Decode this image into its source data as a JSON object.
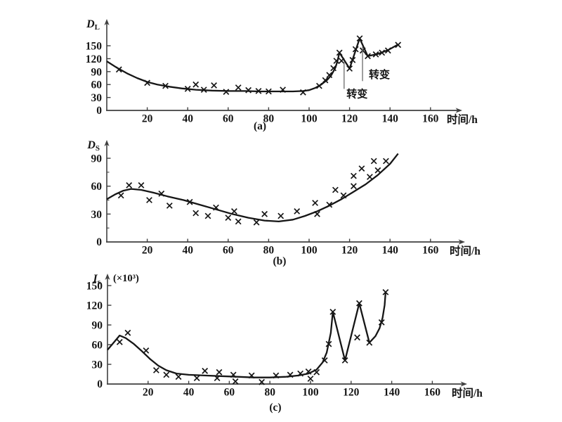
{
  "figure": {
    "ink_color": "#161616",
    "axis_color": "#3f3f3f",
    "annotation_line_color": "#6a6a6a",
    "marker_glyph": "x-cross",
    "x_axis_label": "时间/h"
  },
  "chart_data": [
    {
      "id": "a",
      "type": "scatter",
      "sublabel": "(a)",
      "ylabel_base": "D",
      "ylabel_sub": "L",
      "ylabel_unit": "",
      "xlabel": "时间/h",
      "xlim": [
        0,
        176
      ],
      "ylim": [
        0,
        212
      ],
      "x_ticks": [
        20,
        40,
        60,
        80,
        100,
        120,
        140,
        160
      ],
      "y_ticks": [
        30,
        60,
        90,
        120,
        150
      ],
      "y_minor_ticks": [],
      "origin_tick_label": "0",
      "grid": false,
      "curve": [
        [
          0,
          114
        ],
        [
          5,
          99
        ],
        [
          10,
          86
        ],
        [
          15,
          75
        ],
        [
          20,
          66
        ],
        [
          25,
          60
        ],
        [
          31,
          55
        ],
        [
          37,
          51
        ],
        [
          44,
          48
        ],
        [
          52,
          46
        ],
        [
          60,
          45
        ],
        [
          68,
          45
        ],
        [
          76,
          44
        ],
        [
          84,
          44
        ],
        [
          92,
          44
        ],
        [
          97,
          45
        ],
        [
          100,
          47
        ],
        [
          103,
          52
        ],
        [
          106,
          60
        ],
        [
          109,
          71
        ],
        [
          111,
          82
        ],
        [
          113,
          99
        ],
        [
          114,
          114
        ],
        [
          115,
          134
        ],
        [
          120,
          97
        ],
        [
          125,
          167
        ],
        [
          129,
          126
        ],
        [
          134,
          131
        ],
        [
          139,
          140
        ],
        [
          144,
          153
        ]
      ],
      "points": [
        [
          6,
          95
        ],
        [
          20,
          64
        ],
        [
          29,
          57
        ],
        [
          40,
          50
        ],
        [
          44,
          60
        ],
        [
          48,
          48
        ],
        [
          53,
          58
        ],
        [
          59,
          43
        ],
        [
          65,
          53
        ],
        [
          70,
          47
        ],
        [
          75,
          45
        ],
        [
          80,
          44
        ],
        [
          87,
          48
        ],
        [
          97,
          42
        ],
        [
          105,
          57
        ],
        [
          108,
          70
        ],
        [
          110,
          82
        ],
        [
          112,
          98
        ],
        [
          113.5,
          115
        ],
        [
          115,
          134
        ],
        [
          116,
          115
        ],
        [
          120,
          97
        ],
        [
          121.5,
          117
        ],
        [
          123,
          142
        ],
        [
          125,
          167
        ],
        [
          126.5,
          139
        ],
        [
          129,
          126
        ],
        [
          133,
          130
        ],
        [
          136,
          134
        ],
        [
          139,
          139
        ],
        [
          144,
          152
        ]
      ],
      "annotations": [
        {
          "label": "转变",
          "line_x": 117.3,
          "line_y_from": 112,
          "line_y_to": 50,
          "label_x": 118.5,
          "label_y": 30
        },
        {
          "label": "转变",
          "line_x": 126.4,
          "line_y_from": 148,
          "line_y_to": 68,
          "label_x": 129.5,
          "label_y": 75
        }
      ]
    },
    {
      "id": "b",
      "type": "scatter",
      "sublabel": "(b)",
      "ylabel_base": "D",
      "ylabel_sub": "S",
      "ylabel_unit": "",
      "xlabel": "时间/h",
      "xlim": [
        0,
        176
      ],
      "ylim": [
        0,
        110
      ],
      "x_ticks": [
        20,
        40,
        60,
        80,
        100,
        120,
        140,
        160
      ],
      "y_ticks": [
        30,
        60,
        90
      ],
      "y_minor_ticks": [
        15,
        45,
        75
      ],
      "origin_tick_label": "0",
      "grid": false,
      "curve": [
        [
          0,
          46
        ],
        [
          4,
          51
        ],
        [
          8,
          55
        ],
        [
          12,
          57
        ],
        [
          17,
          56
        ],
        [
          23,
          53
        ],
        [
          30,
          49
        ],
        [
          38,
          45
        ],
        [
          46,
          40
        ],
        [
          54,
          35
        ],
        [
          62,
          30
        ],
        [
          70,
          26
        ],
        [
          78,
          23
        ],
        [
          85,
          22
        ],
        [
          92,
          24
        ],
        [
          98,
          28
        ],
        [
          104,
          33
        ],
        [
          110,
          39
        ],
        [
          116,
          46
        ],
        [
          122,
          54
        ],
        [
          128,
          62
        ],
        [
          134,
          72
        ],
        [
          140,
          84
        ],
        [
          144,
          95
        ]
      ],
      "points": [
        [
          7,
          50
        ],
        [
          11,
          61
        ],
        [
          17,
          61
        ],
        [
          21,
          45
        ],
        [
          27,
          52
        ],
        [
          31,
          39
        ],
        [
          41,
          43
        ],
        [
          44,
          31
        ],
        [
          50,
          28
        ],
        [
          54,
          37
        ],
        [
          60,
          26
        ],
        [
          63,
          33
        ],
        [
          65,
          22
        ],
        [
          74,
          21
        ],
        [
          78,
          30
        ],
        [
          86,
          28
        ],
        [
          94,
          33
        ],
        [
          103,
          42
        ],
        [
          104,
          30
        ],
        [
          110,
          40
        ],
        [
          113,
          56
        ],
        [
          117,
          50
        ],
        [
          122,
          71
        ],
        [
          122,
          60
        ],
        [
          126,
          79
        ],
        [
          130,
          70
        ],
        [
          132,
          87
        ],
        [
          134,
          77
        ],
        [
          138,
          87
        ]
      ],
      "annotations": []
    },
    {
      "id": "c",
      "type": "scatter",
      "sublabel": "(c)",
      "ylabel_base": "I",
      "ylabel_sub": "s",
      "ylabel_unit": "(×10³)",
      "xlabel": "时间/h",
      "xlim": [
        0,
        176
      ],
      "ylim": [
        0,
        168
      ],
      "x_ticks": [
        20,
        40,
        60,
        80,
        100,
        120,
        140,
        160
      ],
      "y_ticks": [
        30,
        60,
        90,
        120,
        150
      ],
      "y_minor_ticks": [],
      "origin_tick_label": "0",
      "grid": false,
      "curve": [
        [
          0,
          52
        ],
        [
          3,
          63
        ],
        [
          6,
          74
        ],
        [
          9,
          70
        ],
        [
          13,
          61
        ],
        [
          17,
          50
        ],
        [
          21,
          38
        ],
        [
          25,
          28
        ],
        [
          29,
          21
        ],
        [
          34,
          16
        ],
        [
          40,
          14
        ],
        [
          48,
          13
        ],
        [
          56,
          12
        ],
        [
          64,
          11
        ],
        [
          72,
          10
        ],
        [
          80,
          10
        ],
        [
          88,
          11
        ],
        [
          94,
          13
        ],
        [
          99,
          16
        ],
        [
          103,
          22
        ],
        [
          106,
          33
        ],
        [
          108,
          48
        ],
        [
          110,
          78
        ],
        [
          111,
          110
        ],
        [
          117,
          36
        ],
        [
          124,
          123
        ],
        [
          129,
          63
        ],
        [
          132,
          73
        ],
        [
          134,
          85
        ],
        [
          135.5,
          101
        ],
        [
          136.5,
          120
        ],
        [
          137,
          140
        ]
      ],
      "points": [
        [
          6,
          64
        ],
        [
          10,
          78
        ],
        [
          19,
          51
        ],
        [
          24,
          21
        ],
        [
          29,
          14
        ],
        [
          35,
          11
        ],
        [
          44,
          9
        ],
        [
          48,
          20
        ],
        [
          54,
          9
        ],
        [
          55,
          18
        ],
        [
          62,
          14
        ],
        [
          63,
          4
        ],
        [
          71,
          13
        ],
        [
          76,
          3
        ],
        [
          83,
          13
        ],
        [
          90,
          14
        ],
        [
          95,
          16
        ],
        [
          99,
          19
        ],
        [
          100,
          8
        ],
        [
          103,
          18
        ],
        [
          107,
          36
        ],
        [
          109,
          61
        ],
        [
          111,
          110
        ],
        [
          117,
          36
        ],
        [
          123,
          71
        ],
        [
          124,
          123
        ],
        [
          129,
          63
        ],
        [
          135,
          94
        ],
        [
          137,
          140
        ]
      ],
      "annotations": []
    }
  ]
}
